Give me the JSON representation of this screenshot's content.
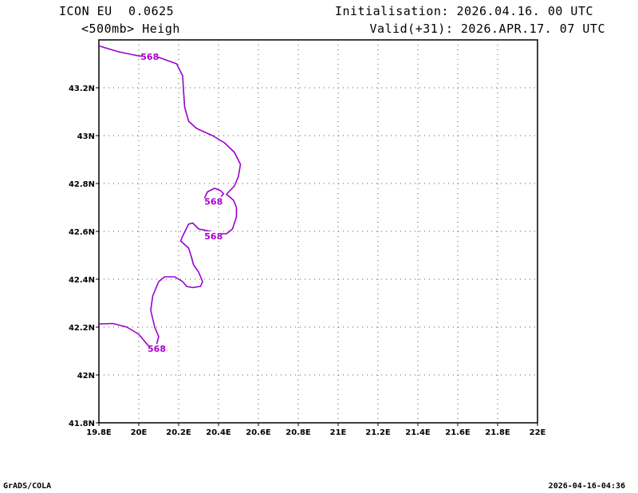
{
  "header": {
    "model": "ICON EU",
    "resolution": "0.0625",
    "field": "<500mb> Heigh",
    "init": "Initialisation: 2026.04.16. 00 UTC",
    "valid": "Valid(+31): 2026.APR.17. 07 UTC"
  },
  "footer": {
    "left": "GrADS/COLA",
    "right": "2026-04-16-04:36"
  },
  "colors": {
    "contour": "#9900cc",
    "label": "#aa00cc",
    "grid": "#555555"
  },
  "chart_data": {
    "type": "line",
    "title": "<500mb> Heigh",
    "grid": true,
    "xlim": [
      19.8,
      22.0
    ],
    "ylim": [
      41.8,
      43.4
    ],
    "x_ticks": [
      {
        "v": 19.8,
        "label": "19.8E"
      },
      {
        "v": 20.0,
        "label": "20E"
      },
      {
        "v": 20.2,
        "label": "20.2E"
      },
      {
        "v": 20.4,
        "label": "20.4E"
      },
      {
        "v": 20.6,
        "label": "20.6E"
      },
      {
        "v": 20.8,
        "label": "20.8E"
      },
      {
        "v": 21.0,
        "label": "21E"
      },
      {
        "v": 21.2,
        "label": "21.2E"
      },
      {
        "v": 21.4,
        "label": "21.4E"
      },
      {
        "v": 21.6,
        "label": "21.6E"
      },
      {
        "v": 21.8,
        "label": "21.8E"
      },
      {
        "v": 22.0,
        "label": "22E"
      }
    ],
    "y_ticks": [
      {
        "v": 41.8,
        "label": "41.8N"
      },
      {
        "v": 42.0,
        "label": "42N"
      },
      {
        "v": 42.2,
        "label": "42.2N"
      },
      {
        "v": 42.4,
        "label": "42.4N"
      },
      {
        "v": 42.6,
        "label": "42.6N"
      },
      {
        "v": 42.8,
        "label": "42.8N"
      },
      {
        "v": 43.0,
        "label": "43N"
      },
      {
        "v": 43.2,
        "label": "43.2N"
      }
    ],
    "contours": [
      {
        "level": "568",
        "points": [
          [
            19.8,
            43.375
          ],
          [
            19.9,
            43.35
          ],
          [
            20.0,
            43.333
          ],
          [
            20.1,
            43.327
          ],
          [
            20.19,
            43.3
          ],
          [
            20.22,
            43.25
          ],
          [
            20.225,
            43.18
          ],
          [
            20.23,
            43.12
          ],
          [
            20.25,
            43.06
          ],
          [
            20.29,
            43.03
          ],
          [
            20.37,
            43.0
          ],
          [
            20.43,
            42.97
          ],
          [
            20.48,
            42.93
          ],
          [
            20.51,
            42.88
          ],
          [
            20.5,
            42.83
          ],
          [
            20.48,
            42.79
          ],
          [
            20.44,
            42.755
          ],
          [
            20.475,
            42.73
          ],
          [
            20.49,
            42.7
          ],
          [
            20.49,
            42.66
          ],
          [
            20.47,
            42.61
          ],
          [
            20.44,
            42.59
          ],
          [
            20.4,
            42.59
          ],
          [
            20.36,
            42.6
          ],
          [
            20.3,
            42.61
          ],
          [
            20.27,
            42.635
          ],
          [
            20.25,
            42.63
          ],
          [
            20.22,
            42.58
          ],
          [
            20.21,
            42.56
          ],
          [
            20.25,
            42.53
          ],
          [
            20.265,
            42.49
          ],
          [
            20.275,
            42.46
          ],
          [
            20.3,
            42.43
          ],
          [
            20.32,
            42.39
          ],
          [
            20.31,
            42.37
          ],
          [
            20.27,
            42.365
          ],
          [
            20.24,
            42.37
          ],
          [
            20.22,
            42.39
          ],
          [
            20.18,
            42.41
          ],
          [
            20.13,
            42.41
          ],
          [
            20.1,
            42.39
          ],
          [
            20.07,
            42.33
          ],
          [
            20.06,
            42.27
          ],
          [
            20.08,
            42.2
          ],
          [
            20.1,
            42.16
          ],
          [
            20.09,
            42.13
          ]
        ],
        "labels": [
          [
            20.055,
            43.33
          ]
        ]
      },
      {
        "level": "568",
        "points": [
          [
            19.8,
            42.213
          ],
          [
            19.87,
            42.215
          ],
          [
            19.94,
            42.2
          ],
          [
            20.0,
            42.17
          ],
          [
            20.05,
            42.12
          ],
          [
            20.09,
            42.11
          ]
        ],
        "labels": [
          [
            20.09,
            42.11
          ]
        ]
      },
      {
        "level": "568",
        "points": [
          [
            20.33,
            42.74
          ],
          [
            20.33,
            42.74
          ],
          [
            20.345,
            42.765
          ],
          [
            20.38,
            42.78
          ],
          [
            20.41,
            42.77
          ],
          [
            20.425,
            42.757
          ],
          [
            20.41,
            42.742
          ],
          [
            20.38,
            42.74
          ],
          [
            20.355,
            42.742
          ],
          [
            20.33,
            42.74
          ]
        ],
        "labels": [
          [
            20.375,
            42.725
          ]
        ]
      },
      {
        "level": "568",
        "points": [],
        "labels": [
          [
            20.375,
            42.58
          ]
        ]
      }
    ]
  }
}
